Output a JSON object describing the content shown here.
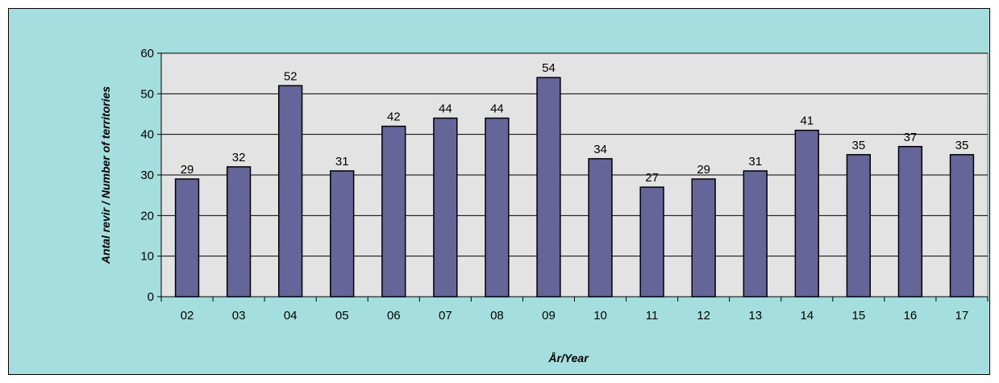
{
  "chart_data": {
    "type": "bar",
    "categories": [
      "02",
      "03",
      "04",
      "05",
      "06",
      "07",
      "08",
      "09",
      "10",
      "11",
      "12",
      "13",
      "14",
      "15",
      "16",
      "17"
    ],
    "values": [
      29,
      32,
      52,
      31,
      42,
      44,
      44,
      54,
      34,
      27,
      29,
      31,
      41,
      35,
      37,
      35
    ],
    "xlabel_prefix": "År/",
    "xlabel_main": "Year",
    "ylabel_prefix": "Antal revir / ",
    "ylabel_main": "Number of territories",
    "ylim": [
      0,
      60
    ],
    "yticks": [
      0,
      10,
      20,
      30,
      40,
      50,
      60
    ],
    "grid": true,
    "colors": {
      "frame_bg": "#a4dede",
      "plot_bg": "#e3e3e3",
      "bar_fill": "#65659a",
      "bar_stroke": "#000000"
    }
  }
}
